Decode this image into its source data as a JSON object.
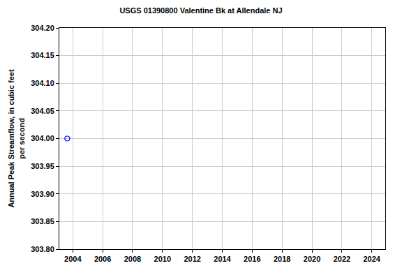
{
  "chart_data": {
    "type": "scatter",
    "title": "USGS 01390800 Valentine Bk at Allendale NJ",
    "y_label": "Annual Peak Streamflow, in cubic feet\nper second",
    "x": [
      2003.63
    ],
    "values": [
      304.0
    ],
    "color": "#0000ff",
    "marker": "circle-open",
    "xlim": [
      2003.1,
      2024.9
    ],
    "xticks": [
      2004,
      2006,
      2008,
      2010,
      2012,
      2014,
      2016,
      2018,
      2020,
      2022,
      2024
    ],
    "ylim": [
      303.8,
      304.2
    ],
    "yticks": [
      {
        "value": 303.8,
        "label": "303.80"
      },
      {
        "value": 303.85,
        "label": "303.85"
      },
      {
        "value": 303.9,
        "label": "303.90"
      },
      {
        "value": 303.95,
        "label": "303.95"
      },
      {
        "value": 304.0,
        "label": "304.00"
      },
      {
        "value": 304.05,
        "label": "304.05"
      },
      {
        "value": 304.1,
        "label": "304.10"
      },
      {
        "value": 304.15,
        "label": "304.15"
      },
      {
        "value": 304.2,
        "label": "304.20"
      }
    ],
    "grid": true
  }
}
